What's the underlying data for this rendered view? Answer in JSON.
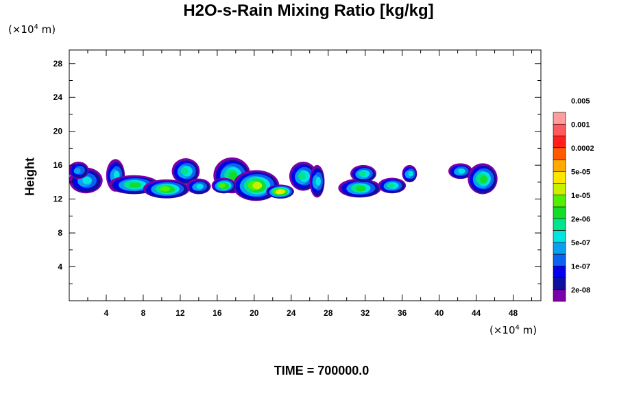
{
  "chart_data": {
    "type": "heatmap",
    "title": "H2O-s-Rain Mixing Ratio [kg/kg]",
    "ylabel": "Height",
    "x_unit": {
      "prefix": "(×10",
      "exp": "4",
      "suffix": " m)"
    },
    "y_unit": {
      "prefix": "(×10",
      "exp": "4",
      "suffix": " m)"
    },
    "xlim": [
      0,
      51
    ],
    "ylim": [
      0,
      29.6
    ],
    "x_ticks": [
      4,
      8,
      12,
      16,
      20,
      24,
      28,
      32,
      36,
      40,
      44,
      48
    ],
    "y_ticks": [
      4,
      8,
      12,
      16,
      20,
      24,
      28
    ],
    "footer": "TIME = 700000.0",
    "legend": {
      "levels": [
        "2e-08",
        "1e-07",
        "5e-07",
        "2e-06",
        "1e-05",
        "5e-05",
        "0.0002",
        "0.001",
        "0.005"
      ],
      "colors": [
        "#7b00aa",
        "#10109c",
        "#0000f0",
        "#0a64f0",
        "#0aa0f0",
        "#00e4e4",
        "#00e48c",
        "#14dc28",
        "#50f000",
        "#c8f000",
        "#ffe600",
        "#ffaa00",
        "#ff5a00",
        "#ff1e1e",
        "#ff5a5a",
        "#ff9c9c"
      ]
    },
    "cloud_cells": [
      {
        "x": 1.8,
        "y": 14.2,
        "rx": 1.7,
        "ry": 1.4,
        "level": 5
      },
      {
        "x": 1.0,
        "y": 15.4,
        "rx": 1.0,
        "ry": 0.9,
        "level": 4
      },
      {
        "x": 5.0,
        "y": 14.8,
        "rx": 0.9,
        "ry": 1.8,
        "level": 5
      },
      {
        "x": 7.0,
        "y": 13.7,
        "rx": 2.6,
        "ry": 1.0,
        "level": 7
      },
      {
        "x": 10.5,
        "y": 13.2,
        "rx": 2.4,
        "ry": 1.0,
        "level": 8
      },
      {
        "x": 12.6,
        "y": 15.3,
        "rx": 1.4,
        "ry": 1.4,
        "level": 6
      },
      {
        "x": 14.0,
        "y": 13.5,
        "rx": 1.2,
        "ry": 0.8,
        "level": 5
      },
      {
        "x": 17.6,
        "y": 14.8,
        "rx": 1.9,
        "ry": 2.0,
        "level": 7
      },
      {
        "x": 20.2,
        "y": 13.6,
        "rx": 2.4,
        "ry": 1.7,
        "level": 9
      },
      {
        "x": 22.8,
        "y": 12.9,
        "rx": 1.4,
        "ry": 0.7,
        "level": 10
      },
      {
        "x": 16.7,
        "y": 13.6,
        "rx": 1.2,
        "ry": 0.8,
        "level": 8
      },
      {
        "x": 25.3,
        "y": 14.7,
        "rx": 1.4,
        "ry": 1.6,
        "level": 6
      },
      {
        "x": 26.8,
        "y": 14.1,
        "rx": 0.7,
        "ry": 1.8,
        "level": 5
      },
      {
        "x": 31.4,
        "y": 13.3,
        "rx": 2.2,
        "ry": 1.0,
        "level": 7
      },
      {
        "x": 31.8,
        "y": 15.0,
        "rx": 1.3,
        "ry": 0.9,
        "level": 6
      },
      {
        "x": 34.9,
        "y": 13.6,
        "rx": 1.4,
        "ry": 0.8,
        "level": 6
      },
      {
        "x": 36.8,
        "y": 15.0,
        "rx": 0.7,
        "ry": 0.9,
        "level": 5
      },
      {
        "x": 42.3,
        "y": 15.3,
        "rx": 1.2,
        "ry": 0.8,
        "level": 5
      },
      {
        "x": 44.7,
        "y": 14.4,
        "rx": 1.5,
        "ry": 1.7,
        "level": 7
      }
    ]
  }
}
